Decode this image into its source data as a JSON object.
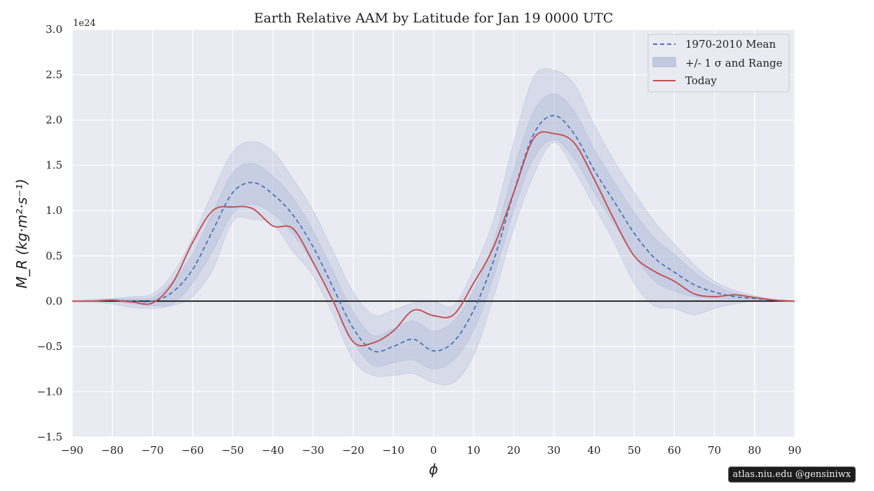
{
  "chart_data": {
    "type": "line",
    "title": "Earth Relative AAM by Latitude for Jan 19 0000 UTC",
    "xlabel": "ϕ",
    "ylabel": "M_R (kg·m²·s⁻¹)",
    "y_scale_label": "1e24",
    "xlim": [
      -90,
      90
    ],
    "ylim": [
      -1.5,
      3.0
    ],
    "x_ticks": [
      -90,
      -80,
      -70,
      -60,
      -50,
      -40,
      -30,
      -20,
      -10,
      0,
      10,
      20,
      30,
      40,
      50,
      60,
      70,
      80,
      90
    ],
    "x_tick_labels": [
      "−90",
      "−80",
      "−70",
      "−60",
      "−50",
      "−40",
      "−30",
      "−20",
      "−10",
      "0",
      "10",
      "20",
      "30",
      "40",
      "50",
      "60",
      "70",
      "80",
      "90"
    ],
    "y_ticks": [
      -1.5,
      -1.0,
      -0.5,
      0.0,
      0.5,
      1.0,
      1.5,
      2.0,
      2.5,
      3.0
    ],
    "y_tick_labels": [
      "−1.5",
      "−1.0",
      "−0.5",
      "0.0",
      "0.5",
      "1.0",
      "1.5",
      "2.0",
      "2.5",
      "3.0"
    ],
    "grid": true,
    "legend_position": "top-right",
    "x": [
      -90,
      -85,
      -80,
      -75,
      -70,
      -65,
      -60,
      -55,
      -50,
      -45,
      -40,
      -35,
      -30,
      -25,
      -20,
      -15,
      -10,
      -5,
      0,
      5,
      10,
      15,
      20,
      25,
      30,
      35,
      40,
      45,
      50,
      55,
      60,
      65,
      70,
      75,
      80,
      85,
      90
    ],
    "series": [
      {
        "name": "1970-2010 Mean",
        "style": "dashed",
        "color": "#4c72b0",
        "values": [
          0,
          0,
          0.01,
          0.0,
          0.0,
          0.1,
          0.35,
          0.78,
          1.2,
          1.31,
          1.18,
          0.95,
          0.6,
          0.15,
          -0.3,
          -0.55,
          -0.5,
          -0.42,
          -0.55,
          -0.45,
          -0.1,
          0.45,
          1.2,
          1.85,
          2.05,
          1.85,
          1.45,
          1.1,
          0.75,
          0.48,
          0.32,
          0.18,
          0.1,
          0.05,
          0.03,
          0.01,
          0
        ]
      },
      {
        "name": "+/- 1 σ and Range",
        "style": "band",
        "color": "#b4bfdb",
        "sigma_lower": [
          0,
          0,
          0,
          -0.03,
          -0.05,
          -0.03,
          0.2,
          0.55,
          0.97,
          1.07,
          0.96,
          0.74,
          0.42,
          0.0,
          -0.45,
          -0.71,
          -0.68,
          -0.65,
          -0.75,
          -0.65,
          -0.32,
          0.27,
          1.0,
          1.58,
          1.78,
          1.58,
          1.2,
          0.85,
          0.5,
          0.22,
          0.11,
          0.05,
          0.03,
          0.02,
          0.01,
          0,
          0
        ],
        "sigma_upper": [
          0,
          0.01,
          0.02,
          0.03,
          0.04,
          0.22,
          0.52,
          0.98,
          1.42,
          1.52,
          1.38,
          1.14,
          0.78,
          0.33,
          -0.12,
          -0.38,
          -0.3,
          -0.22,
          -0.33,
          -0.22,
          0.12,
          0.66,
          1.45,
          2.1,
          2.29,
          2.1,
          1.68,
          1.32,
          0.98,
          0.7,
          0.52,
          0.32,
          0.18,
          0.09,
          0.05,
          0.02,
          0
        ],
        "range_lower": [
          0,
          -0.01,
          -0.03,
          -0.07,
          -0.08,
          -0.05,
          0.05,
          0.35,
          0.88,
          0.9,
          0.85,
          0.55,
          0.28,
          -0.15,
          -0.65,
          -0.82,
          -0.82,
          -0.8,
          -0.9,
          -0.9,
          -0.6,
          0.05,
          0.8,
          1.4,
          1.75,
          1.45,
          1.05,
          0.65,
          0.2,
          -0.05,
          -0.08,
          -0.15,
          -0.08,
          -0.03,
          0.0,
          0,
          0
        ],
        "range_upper": [
          0,
          0.02,
          0.03,
          0.05,
          0.08,
          0.3,
          0.7,
          1.2,
          1.65,
          1.76,
          1.65,
          1.35,
          1.0,
          0.55,
          0.1,
          -0.15,
          -0.1,
          -0.02,
          0.0,
          -0.05,
          0.35,
          0.9,
          1.75,
          2.48,
          2.55,
          2.4,
          1.95,
          1.55,
          1.2,
          0.88,
          0.63,
          0.4,
          0.22,
          0.12,
          0.06,
          0.02,
          0
        ]
      },
      {
        "name": "Today",
        "style": "solid",
        "color": "#c44e52",
        "values": [
          0,
          0,
          0.01,
          -0.01,
          -0.02,
          0.2,
          0.65,
          1.0,
          1.04,
          1.02,
          0.83,
          0.8,
          0.43,
          0.0,
          -0.45,
          -0.46,
          -0.33,
          -0.1,
          -0.16,
          -0.15,
          0.2,
          0.6,
          1.2,
          1.8,
          1.85,
          1.75,
          1.35,
          0.9,
          0.5,
          0.33,
          0.22,
          0.08,
          0.05,
          0.07,
          0.04,
          0.01,
          0
        ]
      }
    ]
  },
  "watermark": "atlas.niu.edu  @gensiniwx",
  "colors": {
    "plot_bg": "#eaeaf2",
    "grid": "#ffffff",
    "zero_line": "#000000"
  }
}
